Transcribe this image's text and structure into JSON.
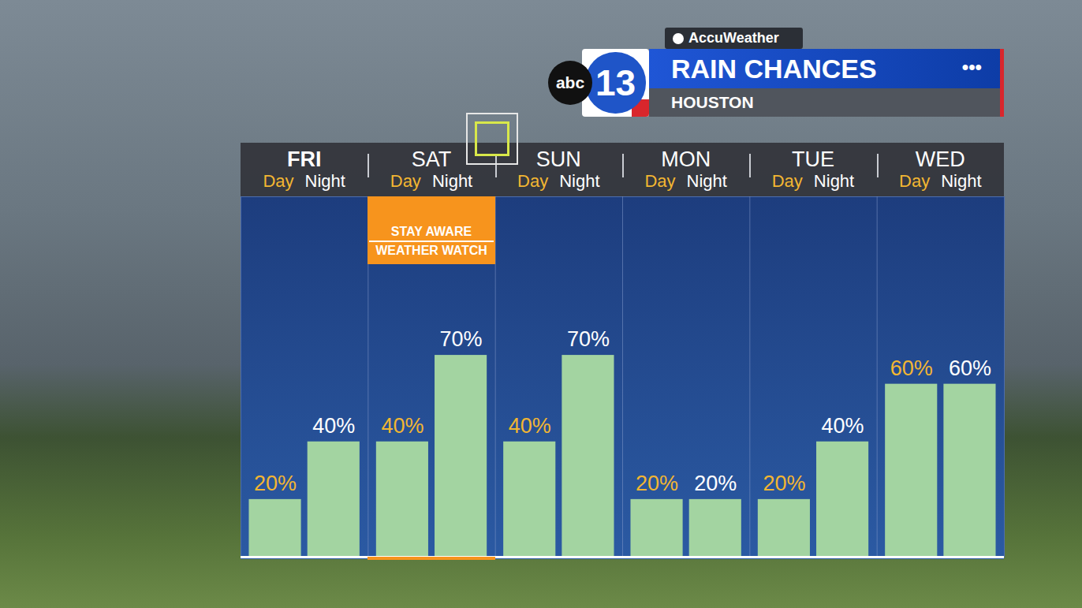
{
  "header": {
    "source": "AccuWeather",
    "network": "abc",
    "channel": "13",
    "subtitle": "HOUSTON",
    "menu": "•••"
  },
  "chart_data": {
    "type": "bar",
    "title": "RAIN CHANCES",
    "groups": [
      "FRI",
      "SAT",
      "SUN",
      "MON",
      "TUE",
      "WED"
    ],
    "series": [
      {
        "name": "Day",
        "color": "#f2b632",
        "values": [
          20,
          40,
          40,
          20,
          20,
          60
        ],
        "value_labels": [
          "20%",
          "40%",
          "40%",
          "20%",
          "20%",
          "60%"
        ]
      },
      {
        "name": "Night",
        "color": "#ffffff",
        "values": [
          40,
          70,
          70,
          20,
          40,
          60
        ],
        "value_labels": [
          "40%",
          "70%",
          "70%",
          "20%",
          "40%",
          "60%"
        ]
      }
    ],
    "color": "#a3d4a1",
    "ylim": [
      0,
      125
    ],
    "yticks": [],
    "grid": false,
    "data_labels": true,
    "tick_labels": false,
    "annotation": {
      "lines": [
        "STAY AWARE",
        "WEATHER WATCH"
      ],
      "group": "SAT",
      "color": "#f7941d"
    }
  }
}
